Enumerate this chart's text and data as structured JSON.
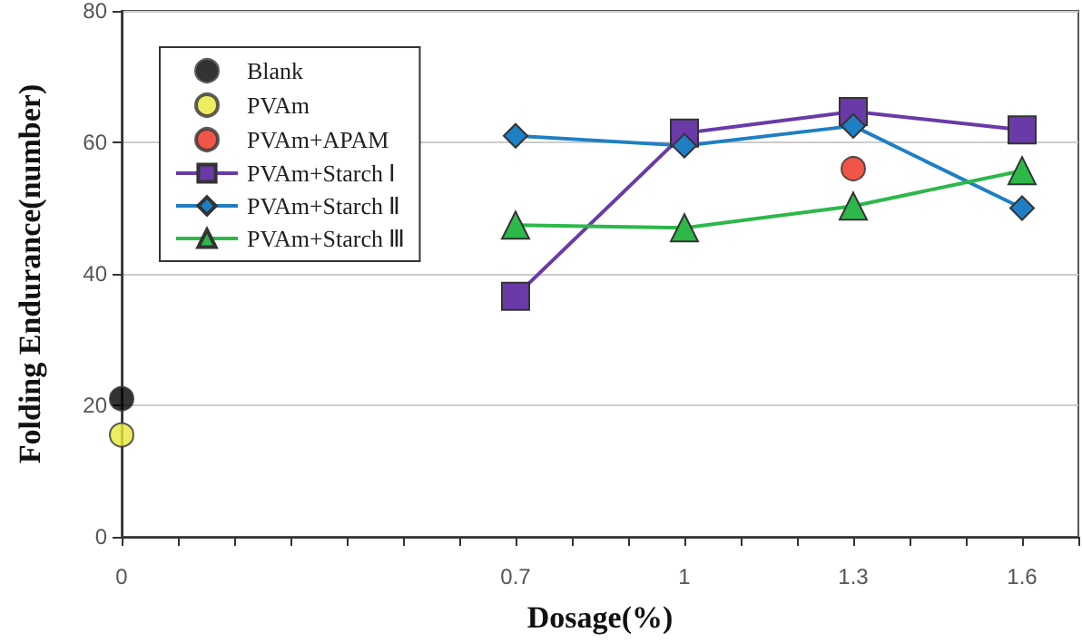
{
  "chart_data": {
    "type": "line",
    "xlabel": "Dosage(%)",
    "ylabel": "Folding Endurance(number)",
    "xlim": [
      0,
      1.7
    ],
    "xticks": [
      0,
      {
        "value": 0.1,
        "label": null
      },
      {
        "value": 0.2,
        "label": null
      },
      {
        "value": 0.3,
        "label": null
      },
      {
        "value": 0.4,
        "label": null
      },
      {
        "value": 0.5,
        "label": null
      },
      {
        "value": 0.6,
        "label": null
      },
      0.7,
      {
        "value": 0.8,
        "label": null
      },
      {
        "value": 0.9,
        "label": null
      },
      1,
      {
        "value": 1.1,
        "label": null
      },
      {
        "value": 1.2,
        "label": null
      },
      1.3,
      {
        "value": 1.4,
        "label": null
      },
      {
        "value": 1.5,
        "label": null
      },
      1.6,
      {
        "value": 1.7,
        "label": null
      }
    ],
    "ylim": [
      0,
      80
    ],
    "yticks": [
      0,
      20,
      40,
      60,
      80
    ],
    "grid": "y",
    "legend": "top left",
    "series": [
      {
        "name": "Blank",
        "type": "scatter",
        "marker": "circle",
        "color": "#000000",
        "x": [
          0
        ],
        "values": [
          21
        ]
      },
      {
        "name": "PVAm",
        "type": "scatter",
        "marker": "circle",
        "color": "#e8e83a",
        "x": [
          0
        ],
        "values": [
          15.5
        ]
      },
      {
        "name": "PVAm+APAM",
        "type": "scatter",
        "marker": "circle",
        "color": "#ee2a1a",
        "x": [
          1.3
        ],
        "values": [
          56
        ]
      },
      {
        "name": "PVAm+Starch Ⅰ",
        "marker": "square",
        "color": "#6a3aa8",
        "x": [
          0.7,
          1,
          1.3,
          1.6
        ],
        "values": [
          36.6,
          61.4,
          64.7,
          61.9
        ]
      },
      {
        "name": "PVAm+Starch Ⅱ",
        "marker": "diamond",
        "color": "#1f7fc4",
        "x": [
          0.7,
          1,
          1.3,
          1.6
        ],
        "values": [
          61,
          59.5,
          62.5,
          50
        ]
      },
      {
        "name": "PVAm+Starch Ⅲ",
        "marker": "triangle",
        "color": "#2db84a",
        "x": [
          0.7,
          1,
          1.3,
          1.6
        ],
        "values": [
          47.4,
          47,
          50.3,
          55.7
        ]
      }
    ]
  }
}
